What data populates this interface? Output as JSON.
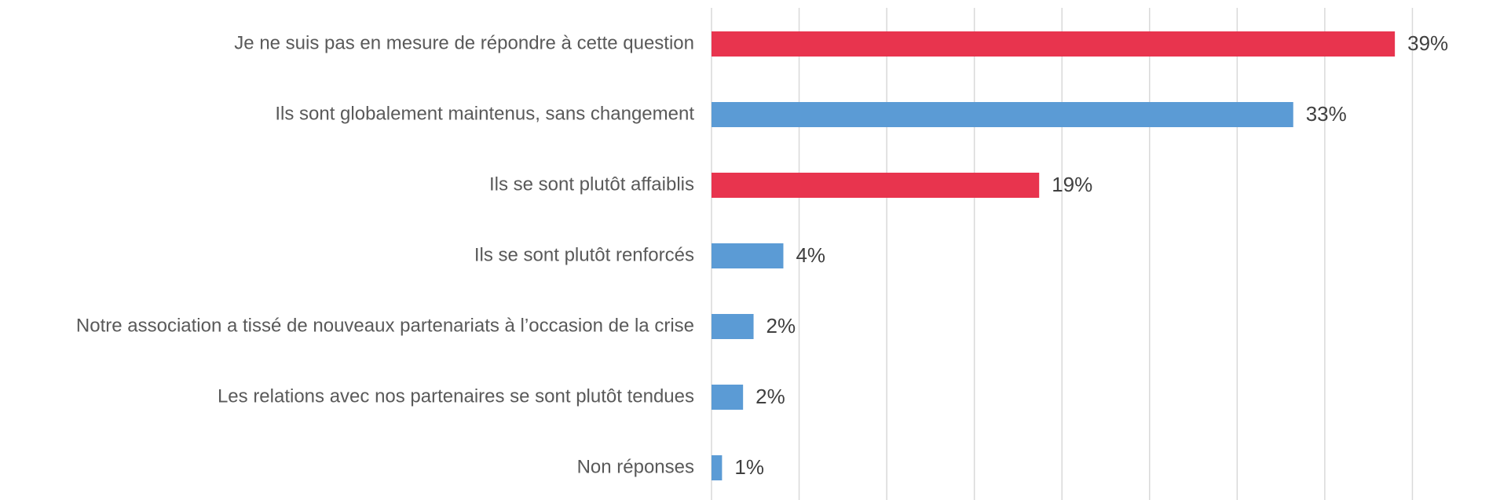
{
  "chart_data": {
    "type": "bar",
    "orientation": "horizontal",
    "categories": [
      "Je ne suis pas en mesure de répondre à cette question",
      "Ils sont globalement maintenus, sans changement",
      "Ils se sont plutôt affaiblis",
      "Ils se sont plutôt renforcés",
      "Notre association a tissé de nouveaux partenariats à l’occasion de la crise",
      "Les relations avec nos partenaires se sont plutôt tendues",
      "Non réponses"
    ],
    "values": [
      39,
      33.2,
      18.7,
      4.1,
      2.4,
      1.8,
      0.6
    ],
    "value_labels": [
      "39%",
      "33%",
      "19%",
      "4%",
      "2%",
      "2%",
      "1%"
    ],
    "colors": [
      "#e8344e",
      "#5b9bd5",
      "#e8344e",
      "#5b9bd5",
      "#5b9bd5",
      "#5b9bd5",
      "#5b9bd5"
    ],
    "xlim": [
      0,
      45
    ],
    "xticks": [
      0,
      5,
      10,
      15,
      20,
      25,
      30,
      35,
      40
    ],
    "grid": true
  }
}
